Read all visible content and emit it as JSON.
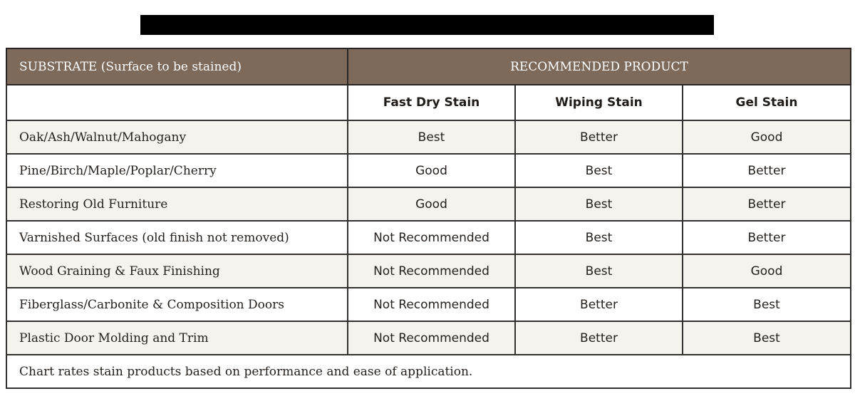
{
  "title": {
    "redacted": true
  },
  "table": {
    "header": {
      "substrate_label": "SUBSTRATE (Surface to be stained)",
      "recommended_label": "RECOMMENDED PRODUCT"
    },
    "products": [
      "Fast Dry Stain",
      "Wiping Stain",
      "Gel Stain"
    ],
    "rows": [
      {
        "substrate": "Oak/Ash/Walnut/Mahogany",
        "ratings": [
          "Best",
          "Better",
          "Good"
        ]
      },
      {
        "substrate": "Pine/Birch/Maple/Poplar/Cherry",
        "ratings": [
          "Good",
          "Best",
          "Better"
        ]
      },
      {
        "substrate": "Restoring Old Furniture",
        "ratings": [
          "Good",
          "Best",
          "Better"
        ]
      },
      {
        "substrate": "Varnished Surfaces (old finish not removed)",
        "ratings": [
          "Not Recommended",
          "Best",
          "Better"
        ]
      },
      {
        "substrate": "Wood Graining & Faux Finishing",
        "ratings": [
          "Not Recommended",
          "Best",
          "Good"
        ]
      },
      {
        "substrate": "Fiberglass/Carbonite & Composition Doors",
        "ratings": [
          "Not Recommended",
          "Better",
          "Best"
        ]
      },
      {
        "substrate": "Plastic Door Molding and Trim",
        "ratings": [
          "Not Recommended",
          "Better",
          "Best"
        ]
      }
    ],
    "footnote": "Chart rates stain products based on performance and ease of application."
  },
  "colors": {
    "header_bg": "#7d6a5a",
    "row_alt_bg": "#f5f3ee",
    "border": "#333030"
  }
}
